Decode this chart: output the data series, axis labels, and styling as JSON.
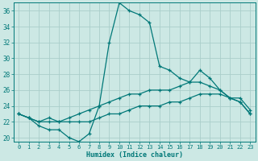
{
  "xlabel": "Humidex (Indice chaleur)",
  "bg_color": "#cce8e4",
  "grid_color": "#aaceca",
  "line_color": "#007878",
  "xlim": [
    -0.5,
    23.5
  ],
  "ylim": [
    19.5,
    37.0
  ],
  "xticks": [
    0,
    1,
    2,
    3,
    4,
    5,
    6,
    7,
    8,
    9,
    10,
    11,
    12,
    13,
    14,
    15,
    16,
    17,
    18,
    19,
    20,
    21,
    22,
    23
  ],
  "yticks": [
    20,
    22,
    24,
    26,
    28,
    30,
    32,
    34,
    36
  ],
  "series": [
    [
      23,
      22.5,
      21.5,
      21,
      21,
      20,
      19.5,
      20.5,
      24,
      32,
      37,
      36,
      35.5,
      34.5,
      29,
      28.5,
      27.5,
      27,
      28.5,
      27.5,
      26,
      25,
      24.5,
      23
    ],
    [
      23,
      22.5,
      22,
      22.5,
      22,
      22.5,
      23,
      23.5,
      24,
      24.5,
      25,
      25.5,
      25.5,
      26,
      26,
      26,
      26.5,
      27,
      27,
      26.5,
      26,
      25,
      25,
      23.5
    ],
    [
      23,
      22.5,
      22,
      22,
      22,
      22,
      22,
      22,
      22.5,
      23,
      23,
      23.5,
      24,
      24,
      24,
      24.5,
      24.5,
      25,
      25.5,
      25.5,
      25.5,
      25,
      24.5,
      23
    ]
  ]
}
